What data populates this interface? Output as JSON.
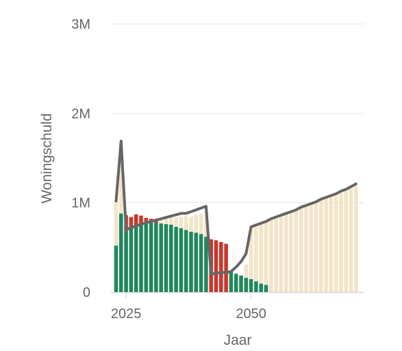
{
  "chart_data": {
    "type": "bar",
    "xlabel": "Jaar",
    "ylabel": "Woningschuld",
    "ylim": [
      0,
      3000000
    ],
    "grid": true,
    "y_ticks": [
      {
        "value": 0,
        "label": "0"
      },
      {
        "value": 1000000,
        "label": "1M"
      },
      {
        "value": 2000000,
        "label": "2M"
      },
      {
        "value": 3000000,
        "label": "3M"
      }
    ],
    "x_ticks": [
      {
        "value": 2025,
        "label": "2025"
      },
      {
        "value": 2050,
        "label": "2050"
      }
    ],
    "years": [
      2023,
      2024,
      2025,
      2026,
      2027,
      2028,
      2029,
      2030,
      2031,
      2032,
      2033,
      2034,
      2035,
      2036,
      2037,
      2038,
      2039,
      2040,
      2041,
      2042,
      2043,
      2044,
      2045,
      2046,
      2047,
      2048,
      2049,
      2050,
      2051,
      2052,
      2053,
      2054,
      2055,
      2056,
      2057,
      2058,
      2059,
      2060,
      2061,
      2062,
      2063,
      2064,
      2065,
      2066,
      2067,
      2068,
      2069,
      2070,
      2071
    ],
    "series": [
      {
        "color": "#21875d",
        "values": [
          520000,
          880000,
          680000,
          720000,
          740000,
          755000,
          765000,
          775000,
          775000,
          768000,
          760000,
          755000,
          730000,
          715000,
          695000,
          675000,
          665000,
          650000,
          620000,
          0,
          0,
          0,
          0,
          230000,
          205000,
          185000,
          160000,
          145000,
          120000,
          95000,
          80000,
          0,
          0,
          0,
          0,
          0,
          0,
          0,
          0,
          0,
          0,
          0,
          0,
          0,
          0,
          0,
          0,
          0,
          0
        ]
      },
      {
        "color": "#c8372d",
        "values": [
          0,
          0,
          180000,
          120000,
          130000,
          100000,
          65000,
          45000,
          25000,
          0,
          0,
          0,
          0,
          0,
          0,
          0,
          0,
          0,
          0,
          590000,
          580000,
          560000,
          540000,
          0,
          0,
          0,
          0,
          0,
          0,
          0,
          0,
          0,
          0,
          0,
          0,
          0,
          0,
          0,
          0,
          0,
          0,
          0,
          0,
          0,
          0,
          0,
          0,
          0,
          0
        ]
      },
      {
        "color": "#f3e4c8",
        "values": [
          500000,
          800000,
          0,
          0,
          0,
          0,
          0,
          0,
          30000,
          60000,
          80000,
          85000,
          105000,
          125000,
          160000,
          170000,
          200000,
          230000,
          280000,
          0,
          0,
          0,
          0,
          0,
          0,
          0,
          150000,
          570000,
          610000,
          660000,
          710000,
          820000,
          840000,
          860000,
          880000,
          900000,
          920000,
          950000,
          970000,
          990000,
          1010000,
          1030000,
          1050000,
          1070000,
          1090000,
          1110000,
          1130000,
          1160000,
          1180000
        ]
      },
      {
        "type": "line",
        "color": "#666666",
        "values": [
          1020000,
          1690000,
          700000,
          720000,
          740000,
          760000,
          775000,
          790000,
          805000,
          820000,
          835000,
          850000,
          865000,
          880000,
          880000,
          900000,
          920000,
          940000,
          960000,
          200000,
          210000,
          220000,
          220000,
          230000,
          280000,
          340000,
          430000,
          730000,
          750000,
          770000,
          790000,
          820000,
          840000,
          860000,
          880000,
          900000,
          920000,
          950000,
          970000,
          990000,
          1010000,
          1040000,
          1060000,
          1080000,
          1100000,
          1130000,
          1150000,
          1180000,
          1210000
        ]
      }
    ]
  }
}
